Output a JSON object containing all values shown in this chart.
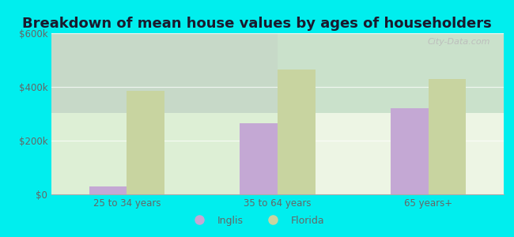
{
  "title": "Breakdown of mean house values by ages of householders",
  "categories": [
    "25 to 34 years",
    "35 to 64 years",
    "65 years+"
  ],
  "inglis_values": [
    30000,
    265000,
    320000
  ],
  "florida_values": [
    385000,
    465000,
    430000
  ],
  "inglis_color": "#c4a8d4",
  "florida_color": "#c8d4a0",
  "ylim": [
    0,
    600000
  ],
  "yticks": [
    0,
    200000,
    400000,
    600000
  ],
  "ytick_labels": [
    "$0",
    "$200k",
    "$400k",
    "$600k"
  ],
  "figure_bg_color": "#00eeee",
  "plot_bg_color": "#eaf4e4",
  "legend_labels": [
    "Inglis",
    "Florida"
  ],
  "bar_width": 0.25,
  "title_fontsize": 13,
  "tick_color": "#666666",
  "watermark": "City-Data.com"
}
